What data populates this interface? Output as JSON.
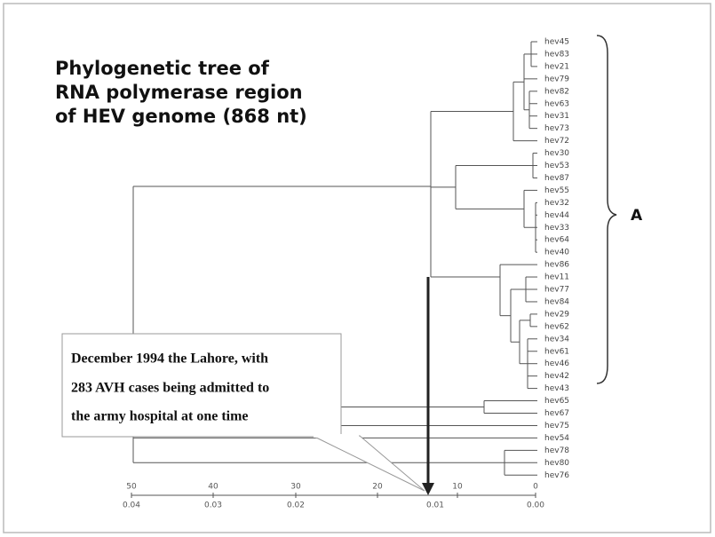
{
  "title": [
    "Phylogenetic tree of",
    "RNA polymerase region",
    "of HEV genome (868 nt)"
  ],
  "leaves": [
    "hev45",
    "hev83",
    "hev21",
    "hev79",
    "hev82",
    "hev63",
    "hev31",
    "hev73",
    "hev72",
    "hev30",
    "hev53",
    "hev87",
    "hev55",
    "hev32",
    "hev44",
    "hev33",
    "hev64",
    "hev40",
    "hev86",
    "hev11",
    "hev77",
    "hev84",
    "hev29",
    "hev62",
    "hev34",
    "hev61",
    "hev46",
    "hev42",
    "hev43",
    "hev65",
    "hev67",
    "hev75",
    "hev54",
    "hev78",
    "hev80",
    "hev76"
  ],
  "clade_label": "A",
  "callout": [
    "December 1994 the Lahore, with",
    "283 AVH cases being admitted to",
    "the army hospital at one time"
  ],
  "scale": {
    "top": [
      "50",
      "40",
      "30",
      "20",
      "10",
      "0"
    ],
    "bottom": [
      "0.04",
      "0.03",
      "0.02",
      "0.01",
      "0.00"
    ]
  }
}
